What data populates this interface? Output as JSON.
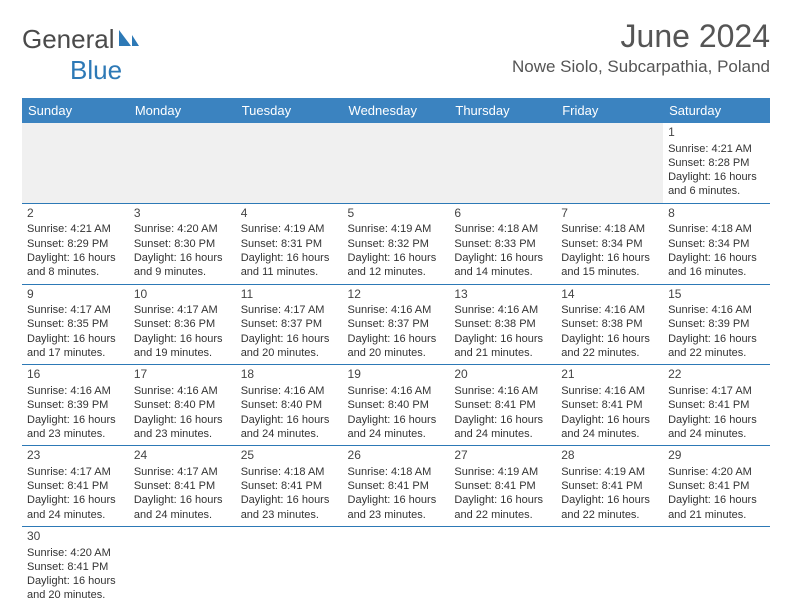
{
  "brand": {
    "text1": "General",
    "text2": "Blue"
  },
  "title": "June 2024",
  "location": "Nowe Siolo, Subcarpathia, Poland",
  "colors": {
    "header_bg": "#3b83c0",
    "header_text": "#ffffff",
    "border": "#2d79b6",
    "brand_gray": "#4a4a4a",
    "brand_blue": "#2d79b6",
    "title_color": "#555555",
    "empty_bg": "#f0f0f0"
  },
  "typography": {
    "title_fontsize": 32,
    "location_fontsize": 17,
    "header_fontsize": 13,
    "cell_fontsize": 11,
    "logo_fontsize": 26
  },
  "day_headers": [
    "Sunday",
    "Monday",
    "Tuesday",
    "Wednesday",
    "Thursday",
    "Friday",
    "Saturday"
  ],
  "weeks": [
    [
      null,
      null,
      null,
      null,
      null,
      null,
      {
        "n": "1",
        "sr": "Sunrise: 4:21 AM",
        "ss": "Sunset: 8:28 PM",
        "d1": "Daylight: 16 hours",
        "d2": "and 6 minutes."
      }
    ],
    [
      {
        "n": "2",
        "sr": "Sunrise: 4:21 AM",
        "ss": "Sunset: 8:29 PM",
        "d1": "Daylight: 16 hours",
        "d2": "and 8 minutes."
      },
      {
        "n": "3",
        "sr": "Sunrise: 4:20 AM",
        "ss": "Sunset: 8:30 PM",
        "d1": "Daylight: 16 hours",
        "d2": "and 9 minutes."
      },
      {
        "n": "4",
        "sr": "Sunrise: 4:19 AM",
        "ss": "Sunset: 8:31 PM",
        "d1": "Daylight: 16 hours",
        "d2": "and 11 minutes."
      },
      {
        "n": "5",
        "sr": "Sunrise: 4:19 AM",
        "ss": "Sunset: 8:32 PM",
        "d1": "Daylight: 16 hours",
        "d2": "and 12 minutes."
      },
      {
        "n": "6",
        "sr": "Sunrise: 4:18 AM",
        "ss": "Sunset: 8:33 PM",
        "d1": "Daylight: 16 hours",
        "d2": "and 14 minutes."
      },
      {
        "n": "7",
        "sr": "Sunrise: 4:18 AM",
        "ss": "Sunset: 8:34 PM",
        "d1": "Daylight: 16 hours",
        "d2": "and 15 minutes."
      },
      {
        "n": "8",
        "sr": "Sunrise: 4:18 AM",
        "ss": "Sunset: 8:34 PM",
        "d1": "Daylight: 16 hours",
        "d2": "and 16 minutes."
      }
    ],
    [
      {
        "n": "9",
        "sr": "Sunrise: 4:17 AM",
        "ss": "Sunset: 8:35 PM",
        "d1": "Daylight: 16 hours",
        "d2": "and 17 minutes."
      },
      {
        "n": "10",
        "sr": "Sunrise: 4:17 AM",
        "ss": "Sunset: 8:36 PM",
        "d1": "Daylight: 16 hours",
        "d2": "and 19 minutes."
      },
      {
        "n": "11",
        "sr": "Sunrise: 4:17 AM",
        "ss": "Sunset: 8:37 PM",
        "d1": "Daylight: 16 hours",
        "d2": "and 20 minutes."
      },
      {
        "n": "12",
        "sr": "Sunrise: 4:16 AM",
        "ss": "Sunset: 8:37 PM",
        "d1": "Daylight: 16 hours",
        "d2": "and 20 minutes."
      },
      {
        "n": "13",
        "sr": "Sunrise: 4:16 AM",
        "ss": "Sunset: 8:38 PM",
        "d1": "Daylight: 16 hours",
        "d2": "and 21 minutes."
      },
      {
        "n": "14",
        "sr": "Sunrise: 4:16 AM",
        "ss": "Sunset: 8:38 PM",
        "d1": "Daylight: 16 hours",
        "d2": "and 22 minutes."
      },
      {
        "n": "15",
        "sr": "Sunrise: 4:16 AM",
        "ss": "Sunset: 8:39 PM",
        "d1": "Daylight: 16 hours",
        "d2": "and 22 minutes."
      }
    ],
    [
      {
        "n": "16",
        "sr": "Sunrise: 4:16 AM",
        "ss": "Sunset: 8:39 PM",
        "d1": "Daylight: 16 hours",
        "d2": "and 23 minutes."
      },
      {
        "n": "17",
        "sr": "Sunrise: 4:16 AM",
        "ss": "Sunset: 8:40 PM",
        "d1": "Daylight: 16 hours",
        "d2": "and 23 minutes."
      },
      {
        "n": "18",
        "sr": "Sunrise: 4:16 AM",
        "ss": "Sunset: 8:40 PM",
        "d1": "Daylight: 16 hours",
        "d2": "and 24 minutes."
      },
      {
        "n": "19",
        "sr": "Sunrise: 4:16 AM",
        "ss": "Sunset: 8:40 PM",
        "d1": "Daylight: 16 hours",
        "d2": "and 24 minutes."
      },
      {
        "n": "20",
        "sr": "Sunrise: 4:16 AM",
        "ss": "Sunset: 8:41 PM",
        "d1": "Daylight: 16 hours",
        "d2": "and 24 minutes."
      },
      {
        "n": "21",
        "sr": "Sunrise: 4:16 AM",
        "ss": "Sunset: 8:41 PM",
        "d1": "Daylight: 16 hours",
        "d2": "and 24 minutes."
      },
      {
        "n": "22",
        "sr": "Sunrise: 4:17 AM",
        "ss": "Sunset: 8:41 PM",
        "d1": "Daylight: 16 hours",
        "d2": "and 24 minutes."
      }
    ],
    [
      {
        "n": "23",
        "sr": "Sunrise: 4:17 AM",
        "ss": "Sunset: 8:41 PM",
        "d1": "Daylight: 16 hours",
        "d2": "and 24 minutes."
      },
      {
        "n": "24",
        "sr": "Sunrise: 4:17 AM",
        "ss": "Sunset: 8:41 PM",
        "d1": "Daylight: 16 hours",
        "d2": "and 24 minutes."
      },
      {
        "n": "25",
        "sr": "Sunrise: 4:18 AM",
        "ss": "Sunset: 8:41 PM",
        "d1": "Daylight: 16 hours",
        "d2": "and 23 minutes."
      },
      {
        "n": "26",
        "sr": "Sunrise: 4:18 AM",
        "ss": "Sunset: 8:41 PM",
        "d1": "Daylight: 16 hours",
        "d2": "and 23 minutes."
      },
      {
        "n": "27",
        "sr": "Sunrise: 4:19 AM",
        "ss": "Sunset: 8:41 PM",
        "d1": "Daylight: 16 hours",
        "d2": "and 22 minutes."
      },
      {
        "n": "28",
        "sr": "Sunrise: 4:19 AM",
        "ss": "Sunset: 8:41 PM",
        "d1": "Daylight: 16 hours",
        "d2": "and 22 minutes."
      },
      {
        "n": "29",
        "sr": "Sunrise: 4:20 AM",
        "ss": "Sunset: 8:41 PM",
        "d1": "Daylight: 16 hours",
        "d2": "and 21 minutes."
      }
    ],
    [
      {
        "n": "30",
        "sr": "Sunrise: 4:20 AM",
        "ss": "Sunset: 8:41 PM",
        "d1": "Daylight: 16 hours",
        "d2": "and 20 minutes."
      },
      null,
      null,
      null,
      null,
      null,
      null
    ]
  ]
}
